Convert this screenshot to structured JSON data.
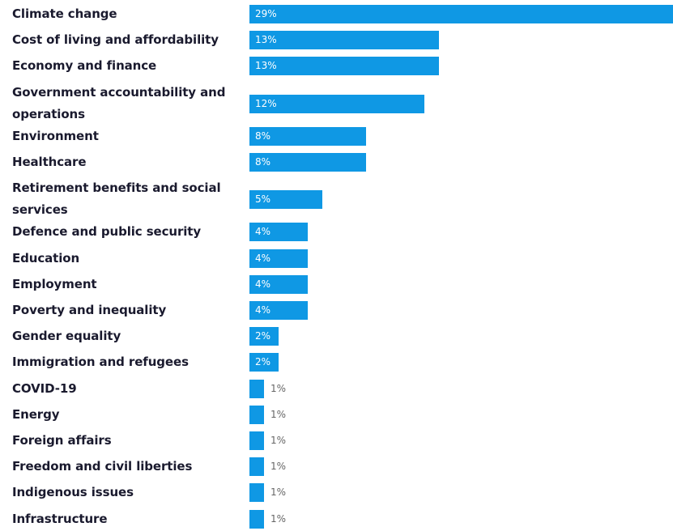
{
  "chart_data": {
    "type": "bar",
    "orientation": "horizontal",
    "categories": [
      "Climate change",
      "Cost of living and affordability",
      "Economy and finance",
      "Government accountability and operations",
      "Environment",
      "Healthcare",
      "Retirement benefits and social services",
      "Defence and public security",
      "Education",
      "Employment",
      "Poverty and inequality",
      "Gender equality",
      "Immigration and refugees",
      "COVID-19",
      "Energy",
      "Foreign affairs",
      "Freedom and civil liberties",
      "Indigenous issues",
      "Infrastructure"
    ],
    "values": [
      29,
      13,
      13,
      12,
      8,
      8,
      5,
      4,
      4,
      4,
      4,
      2,
      2,
      1,
      1,
      1,
      1,
      1,
      1
    ],
    "value_labels": [
      "29%",
      "13%",
      "13%",
      "12%",
      "8%",
      "8%",
      "5%",
      "4%",
      "4%",
      "4%",
      "4%",
      "2%",
      "2%",
      "1%",
      "1%",
      "1%",
      "1%",
      "1%",
      "1%"
    ],
    "xlim": [
      0,
      29
    ],
    "grid": false,
    "legend": "none",
    "bar_color": "#0f98e4",
    "label_color": "#1a1a2e"
  }
}
